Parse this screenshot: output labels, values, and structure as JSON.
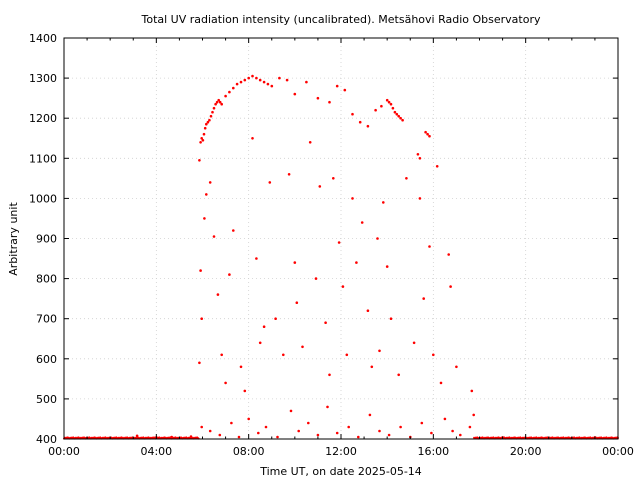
{
  "chart_data": {
    "type": "scatter",
    "title": "Total UV radiation intensity (uncalibrated). Metsähovi Radio Observatory",
    "xlabel": "Time UT, on date 2025-05-14",
    "ylabel": "Arbitrary unit",
    "xlim": [
      "00:00",
      "24:00"
    ],
    "ylim": [
      400,
      1400
    ],
    "x_tick_labels": [
      "00:00",
      "04:00",
      "08:00",
      "12:00",
      "16:00",
      "20:00",
      "00:00"
    ],
    "y_tick_labels": [
      "400",
      "500",
      "600",
      "700",
      "800",
      "900",
      "1000",
      "1100",
      "1200",
      "1300",
      "1400"
    ],
    "grid": true,
    "series": [
      {
        "color": "#ff0000",
        "marker": "dot",
        "points": [
          [
            "05:52",
            1095
          ],
          [
            "05:55",
            1140
          ],
          [
            "05:58",
            1150
          ],
          [
            "06:01",
            1145
          ],
          [
            "06:04",
            1160
          ],
          [
            "06:07",
            1175
          ],
          [
            "06:10",
            1185
          ],
          [
            "06:14",
            1190
          ],
          [
            "06:18",
            1195
          ],
          [
            "06:22",
            1205
          ],
          [
            "06:26",
            1215
          ],
          [
            "06:30",
            1225
          ],
          [
            "06:34",
            1235
          ],
          [
            "06:38",
            1240
          ],
          [
            "06:42",
            1245
          ],
          [
            "06:46",
            1240
          ],
          [
            "06:50",
            1235
          ],
          [
            "07:00",
            1255
          ],
          [
            "07:10",
            1265
          ],
          [
            "07:20",
            1275
          ],
          [
            "07:30",
            1285
          ],
          [
            "07:40",
            1290
          ],
          [
            "07:50",
            1295
          ],
          [
            "08:00",
            1300
          ],
          [
            "08:10",
            1305
          ],
          [
            "08:20",
            1300
          ],
          [
            "08:30",
            1295
          ],
          [
            "08:40",
            1290
          ],
          [
            "08:50",
            1285
          ],
          [
            "09:00",
            1280
          ],
          [
            "09:20",
            1300
          ],
          [
            "09:40",
            1295
          ],
          [
            "10:00",
            1260
          ],
          [
            "10:30",
            1290
          ],
          [
            "11:00",
            1250
          ],
          [
            "11:30",
            1240
          ],
          [
            "11:50",
            1280
          ],
          [
            "12:10",
            1270
          ],
          [
            "12:30",
            1210
          ],
          [
            "12:50",
            1190
          ],
          [
            "13:10",
            1180
          ],
          [
            "13:30",
            1220
          ],
          [
            "13:45",
            1230
          ],
          [
            "14:00",
            1245
          ],
          [
            "14:05",
            1240
          ],
          [
            "14:10",
            1235
          ],
          [
            "14:15",
            1225
          ],
          [
            "14:20",
            1215
          ],
          [
            "14:25",
            1210
          ],
          [
            "14:30",
            1205
          ],
          [
            "14:35",
            1200
          ],
          [
            "14:40",
            1195
          ],
          [
            "15:20",
            1110
          ],
          [
            "15:25",
            1100
          ],
          [
            "15:40",
            1165
          ],
          [
            "15:45",
            1160
          ],
          [
            "15:50",
            1155
          ],
          [
            "16:10",
            1080
          ],
          [
            "05:52",
            590
          ],
          [
            "05:55",
            820
          ],
          [
            "05:58",
            700
          ],
          [
            "06:05",
            950
          ],
          [
            "06:10",
            1010
          ],
          [
            "06:20",
            1040
          ],
          [
            "06:30",
            905
          ],
          [
            "06:40",
            760
          ],
          [
            "06:50",
            610
          ],
          [
            "07:00",
            540
          ],
          [
            "07:10",
            810
          ],
          [
            "07:20",
            920
          ],
          [
            "07:40",
            580
          ],
          [
            "07:50",
            520
          ],
          [
            "08:10",
            1150
          ],
          [
            "08:20",
            850
          ],
          [
            "08:30",
            640
          ],
          [
            "08:40",
            680
          ],
          [
            "08:55",
            1040
          ],
          [
            "09:10",
            700
          ],
          [
            "09:30",
            610
          ],
          [
            "09:45",
            1060
          ],
          [
            "10:00",
            840
          ],
          [
            "10:05",
            740
          ],
          [
            "10:20",
            630
          ],
          [
            "10:40",
            1140
          ],
          [
            "10:55",
            800
          ],
          [
            "11:05",
            1030
          ],
          [
            "11:20",
            690
          ],
          [
            "11:30",
            560
          ],
          [
            "11:40",
            1050
          ],
          [
            "11:55",
            890
          ],
          [
            "12:05",
            780
          ],
          [
            "12:15",
            610
          ],
          [
            "12:30",
            1000
          ],
          [
            "12:40",
            840
          ],
          [
            "12:55",
            940
          ],
          [
            "13:10",
            720
          ],
          [
            "13:20",
            580
          ],
          [
            "13:35",
            900
          ],
          [
            "13:40",
            620
          ],
          [
            "13:50",
            990
          ],
          [
            "14:00",
            830
          ],
          [
            "14:10",
            700
          ],
          [
            "14:30",
            560
          ],
          [
            "14:50",
            1050
          ],
          [
            "15:10",
            640
          ],
          [
            "15:25",
            1000
          ],
          [
            "15:35",
            750
          ],
          [
            "15:50",
            880
          ],
          [
            "16:00",
            610
          ],
          [
            "16:20",
            540
          ],
          [
            "16:40",
            860
          ],
          [
            "16:45",
            780
          ],
          [
            "17:00",
            580
          ],
          [
            "17:40",
            520
          ],
          [
            "17:45",
            460
          ],
          [
            "05:58",
            430
          ],
          [
            "06:20",
            420
          ],
          [
            "06:45",
            410
          ],
          [
            "07:15",
            440
          ],
          [
            "07:35",
            405
          ],
          [
            "08:00",
            450
          ],
          [
            "08:25",
            415
          ],
          [
            "08:45",
            430
          ],
          [
            "09:15",
            405
          ],
          [
            "09:50",
            470
          ],
          [
            "10:10",
            420
          ],
          [
            "10:35",
            440
          ],
          [
            "11:00",
            410
          ],
          [
            "11:25",
            480
          ],
          [
            "11:50",
            415
          ],
          [
            "12:20",
            430
          ],
          [
            "12:45",
            405
          ],
          [
            "13:15",
            460
          ],
          [
            "13:40",
            420
          ],
          [
            "14:05",
            410
          ],
          [
            "14:35",
            430
          ],
          [
            "15:00",
            405
          ],
          [
            "15:30",
            440
          ],
          [
            "15:55",
            415
          ],
          [
            "16:30",
            450
          ],
          [
            "16:50",
            420
          ],
          [
            "17:10",
            410
          ],
          [
            "17:35",
            430
          ],
          [
            "03:10",
            408
          ],
          [
            "04:00",
            404
          ],
          [
            "04:40",
            405
          ],
          [
            "05:30",
            406
          ],
          [
            "19:00",
            404
          ],
          [
            "21:00",
            403
          ],
          [
            "23:00",
            404
          ]
        ]
      }
    ]
  }
}
